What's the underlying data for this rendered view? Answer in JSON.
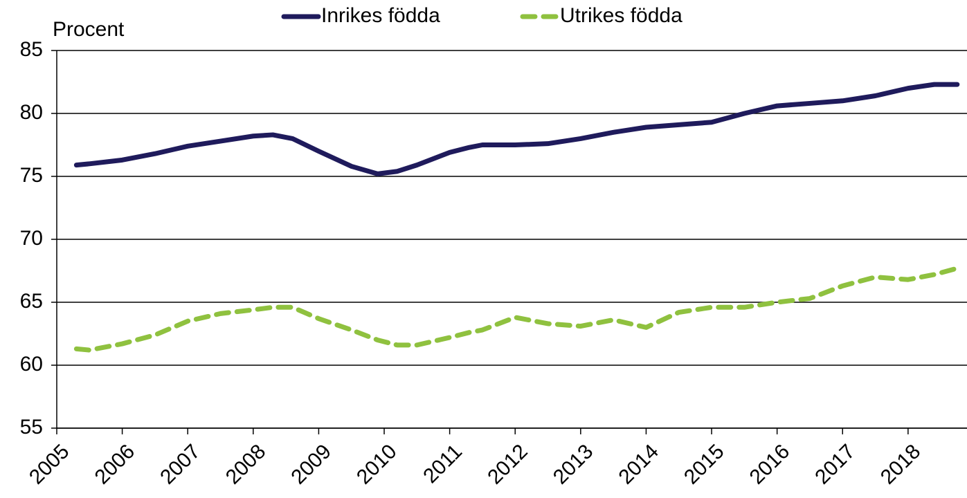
{
  "chart_data": {
    "type": "line",
    "y_axis_label": "Procent",
    "x": [
      2005.3,
      2005.5,
      2006.0,
      2006.5,
      2007.0,
      2007.5,
      2008.0,
      2008.3,
      2008.6,
      2009.0,
      2009.5,
      2009.9,
      2010.2,
      2010.5,
      2011.0,
      2011.3,
      2011.5,
      2012.0,
      2012.5,
      2013.0,
      2013.5,
      2014.0,
      2014.5,
      2015.0,
      2015.5,
      2016.0,
      2016.5,
      2017.0,
      2017.5,
      2018.0,
      2018.4,
      2018.75
    ],
    "series": [
      {
        "name": "Inrikes födda",
        "color": "#1f1b5c",
        "dashed": false,
        "values": [
          75.9,
          76.0,
          76.3,
          76.8,
          77.4,
          77.8,
          78.2,
          78.3,
          78.0,
          77.0,
          75.8,
          75.2,
          75.4,
          75.9,
          76.9,
          77.3,
          77.5,
          77.5,
          77.6,
          78.0,
          78.5,
          78.9,
          79.1,
          79.3,
          80.0,
          80.6,
          80.8,
          81.0,
          81.4,
          82.0,
          82.3,
          82.3
        ]
      },
      {
        "name": "Utrikes födda",
        "color": "#8fc13f",
        "dashed": true,
        "values": [
          61.3,
          61.2,
          61.7,
          62.4,
          63.5,
          64.1,
          64.4,
          64.6,
          64.6,
          63.7,
          62.8,
          62.0,
          61.6,
          61.6,
          62.2,
          62.6,
          62.8,
          63.8,
          63.3,
          63.1,
          63.6,
          63.0,
          64.2,
          64.6,
          64.6,
          65.0,
          65.3,
          66.3,
          67.0,
          66.8,
          67.2,
          67.7
        ]
      }
    ],
    "xlim": [
      2005,
      2018.9
    ],
    "xticks": [
      2005,
      2006,
      2007,
      2008,
      2009,
      2010,
      2011,
      2012,
      2013,
      2014,
      2015,
      2016,
      2017,
      2018
    ],
    "ylim": [
      55,
      85
    ],
    "yticks": [
      55,
      60,
      65,
      70,
      75,
      80,
      85
    ],
    "grid": true,
    "legend": "top"
  }
}
